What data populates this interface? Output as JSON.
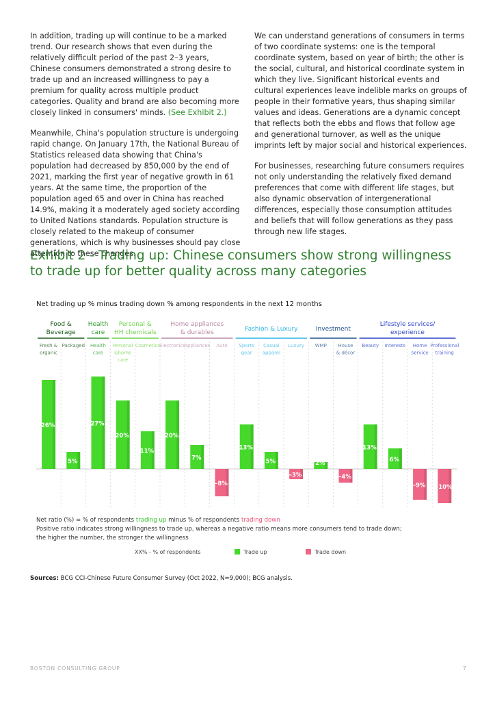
{
  "body": {
    "p1": "In addition, trading up will continue to be a marked trend. Our research shows that even during the relatively difficult period of the past 2–3 years, Chinese consumers demonstrated a strong desire to trade up and an increased willingness to pay a premium for quality across multiple product categories. Quality and brand are also becoming more closely linked in consumers' minds.",
    "p1_link": "(See Exhibit 2.)",
    "p2": "Meanwhile, China's population structure is undergoing rapid change. On January 17th, the National Bureau of Statistics released data showing that China's population had decreased by 850,000 by the end of 2021, marking the first year of negative growth in 61 years. At the same time, the proportion of the population aged 65 and over in China has reached 14.9%, making it a moderately aged society according to United Nations standards. Population structure is closely related to the makeup of consumer generations, which is why businesses should pay close attention to these changes.",
    "p3": "We can understand generations of consumers in terms of two coordinate systems: one is the temporal coordinate system, based on year of birth; the other is the social, cultural, and historical coordinate system in which they live. Significant historical events and cultural experiences leave indelible marks on groups of people in their formative years, thus shaping similar values and ideas. Generations are a dynamic concept that reflects both the ebbs and flows that follow age and generational turnover, as well as the unique imprints left by major social and historical experiences.",
    "p4": "For businesses, researching future consumers requires not only understanding the relatively fixed demand preferences that come with different life stages, but also dynamic observation of intergenerational differences, especially those consumption attitudes and beliefs that will follow generations as they pass through new life stages."
  },
  "exhibit_title": "Exhibit 2 - Trading up: Chinese consumers show strong willingness to trade up for better quality across many categories",
  "chart_data": {
    "type": "bar",
    "title": "Net trading up % minus trading down % among respondents in the next 12 months",
    "groups": [
      {
        "label": [
          "Food &",
          "Beverage"
        ],
        "color": "#1e5a1e",
        "span": 2
      },
      {
        "label": [
          "Health",
          "care"
        ],
        "color": "#2e9a2e",
        "span": 1
      },
      {
        "label": [
          "Personal &",
          "HH chemicals"
        ],
        "color": "#6fd24a",
        "span": 2
      },
      {
        "label": [
          "Home appliances",
          "& durables"
        ],
        "color": "#b88aa3",
        "span": 3
      },
      {
        "label": [
          "Fashion & Luxury"
        ],
        "color": "#2fb3e0",
        "span": 3
      },
      {
        "label": [
          "Investment"
        ],
        "color": "#1e4e8c",
        "span": 2
      },
      {
        "label": [
          "Lifestyle services/",
          "experience"
        ],
        "color": "#2840c8",
        "span": 4
      }
    ],
    "categories": [
      [
        "Fresh &",
        "organic"
      ],
      [
        "Packaged"
      ],
      [
        "Health",
        "care"
      ],
      [
        "Personal",
        "&home",
        "care"
      ],
      [
        "Cosmetics"
      ],
      [
        "Electronics"
      ],
      [
        "Appliances"
      ],
      [
        "Auto"
      ],
      [
        "Sports",
        "gear"
      ],
      [
        "Casual",
        "apparel"
      ],
      [
        "Luxury"
      ],
      [
        "WMP"
      ],
      [
        "House",
        "& décor"
      ],
      [
        "Beauty"
      ],
      [
        "Interests"
      ],
      [
        "Home",
        "service"
      ],
      [
        "Professional",
        "training"
      ]
    ],
    "values": [
      26,
      5,
      27,
      20,
      11,
      20,
      7,
      -8,
      13,
      5,
      -3,
      2,
      -4,
      13,
      6,
      -9,
      -10
    ],
    "value_labels": [
      "26%",
      "5%",
      "27%",
      "20%",
      "11%",
      "20%",
      "7%",
      "–8%",
      "13%",
      "5%",
      "–3%",
      "2%",
      "–4%",
      "13%",
      "6%",
      "–9%",
      "–10%"
    ],
    "series": [
      {
        "name": "Trade up",
        "color": "#46d92b"
      },
      {
        "name": "Trade down",
        "color": "#ef6585"
      }
    ],
    "legend_xx": "XX% - % of respondents",
    "ylim": [
      -10,
      27
    ]
  },
  "note": {
    "line1_pre": "Net ratio (%) = % of respondents ",
    "line1_up": "trading up",
    "line1_mid": " minus % of respondents ",
    "line1_down": "trading down",
    "line2": "Positive ratio indicates strong willingness to trade up, whereas a negative ratio means more consumers tend to trade down;",
    "line3": "the higher the number, the stronger the willingness"
  },
  "sources": {
    "label": "Sources:",
    "text": "BCG CCI-Chinese Future Consumer Survey (Oct 2022, N=9,000); BCG analysis."
  },
  "footer": {
    "company": "BOSTON CONSULTING GROUP",
    "page": "7"
  }
}
